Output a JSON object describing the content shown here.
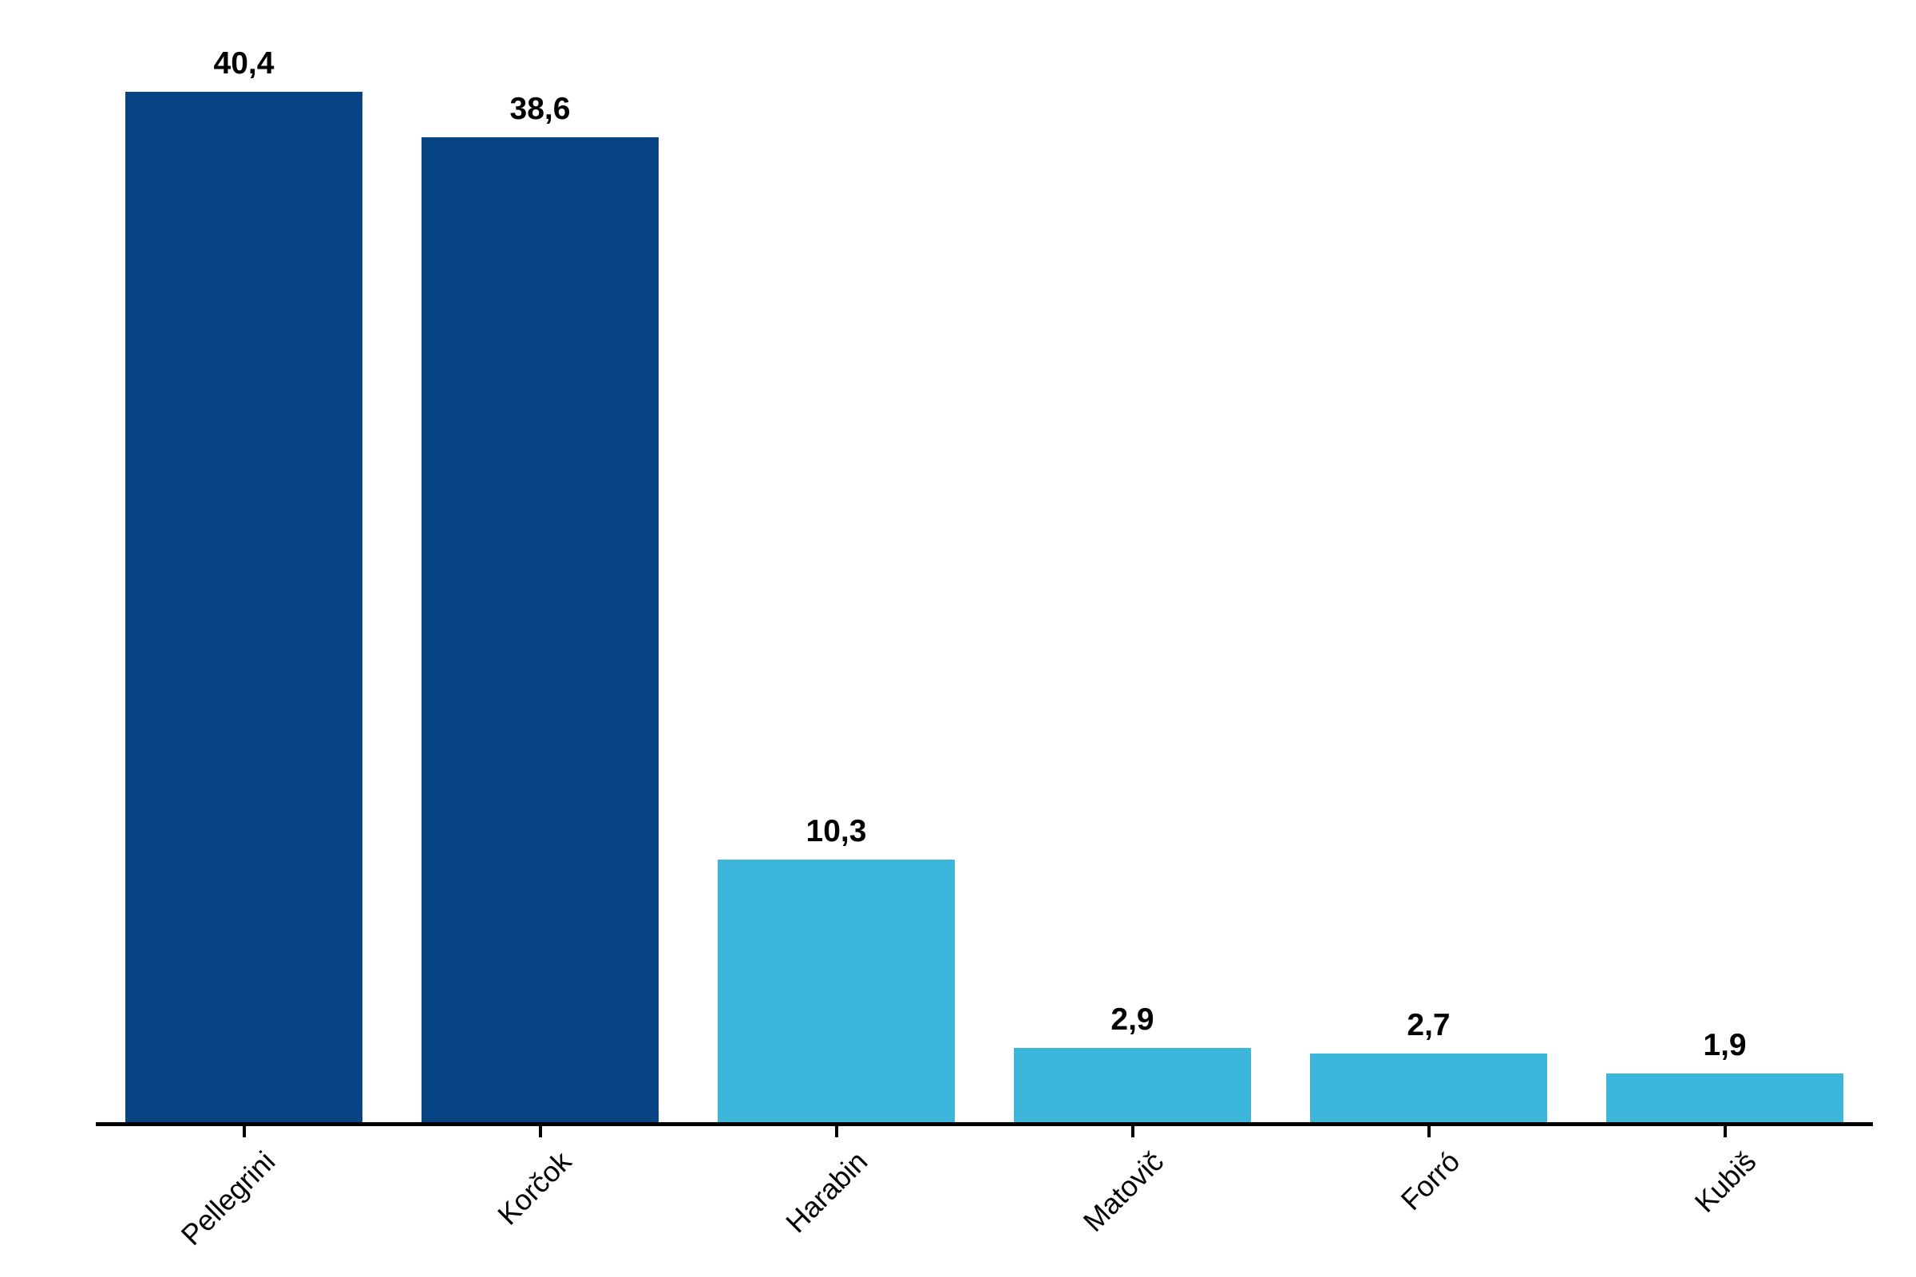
{
  "chart_data": {
    "type": "bar",
    "categories": [
      "Pellegrini",
      "Korčok",
      "Harabin",
      "Matovič",
      "Forró",
      "Kubiš"
    ],
    "values": [
      40.4,
      38.6,
      10.3,
      2.9,
      2.7,
      1.9
    ],
    "value_labels": [
      "40,4",
      "38,6",
      "10,3",
      "2,9",
      "2,7",
      "1,9"
    ],
    "bar_colors": [
      "#084383",
      "#084383",
      "#3db6db",
      "#3db6db",
      "#3db6db",
      "#3db6db"
    ],
    "title": "",
    "xlabel": "",
    "ylabel": "",
    "ylim": [
      0,
      42
    ],
    "grid": false,
    "legend_position": "none",
    "tick_label_rotation_deg": 45,
    "decimal_separator": ",",
    "colors": {
      "dark_blue": "#084383",
      "light_blue": "#3db6db",
      "axis": "#000000",
      "label_text": "#000000",
      "background": "#ffffff"
    }
  }
}
